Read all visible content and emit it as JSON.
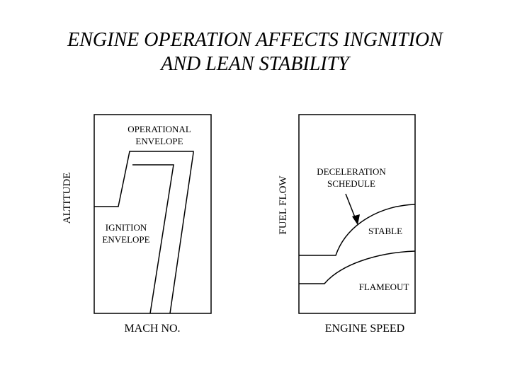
{
  "title": {
    "line1": "ENGINE OPERATION AFFECTS INGNITION",
    "line2": "AND LEAN STABILITY"
  },
  "left_panel": {
    "y_axis_label": "ALTITUDE",
    "x_axis_label": "MACH NO.",
    "operational_envelope_line1": "OPERATIONAL",
    "operational_envelope_line2": "ENVELOPE",
    "ignition_envelope_line1": "IGNITION",
    "ignition_envelope_line2": "ENVELOPE"
  },
  "right_panel": {
    "y_axis_label": "FUEL FLOW",
    "x_axis_label": "ENGINE SPEED",
    "deceleration_schedule_line1": "DECELERATION",
    "deceleration_schedule_line2": "SCHEDULE",
    "stable_label": "STABLE",
    "flameout_label": "FLAMEOUT"
  },
  "colors": {
    "line": "#000000",
    "background": "#ffffff"
  }
}
